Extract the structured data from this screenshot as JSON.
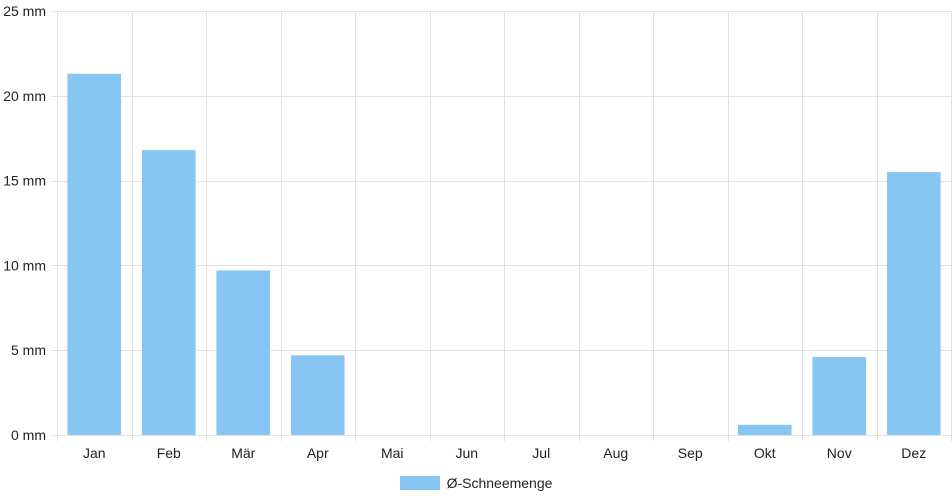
{
  "chart_data": {
    "type": "bar",
    "categories": [
      "Jan",
      "Feb",
      "Mär",
      "Apr",
      "Mai",
      "Jun",
      "Jul",
      "Aug",
      "Sep",
      "Okt",
      "Nov",
      "Dez"
    ],
    "series": [
      {
        "name": "Ø-Schneemenge",
        "values": [
          21.3,
          16.8,
          9.7,
          4.7,
          0,
          0,
          0,
          0,
          0,
          0.6,
          4.6,
          15.5
        ],
        "color": "#87c5f2"
      }
    ],
    "ylim": [
      0,
      25
    ],
    "yticks": [
      0,
      5,
      10,
      15,
      20,
      25
    ],
    "y_unit": "mm",
    "grid": true,
    "legend": "bottom-center"
  }
}
